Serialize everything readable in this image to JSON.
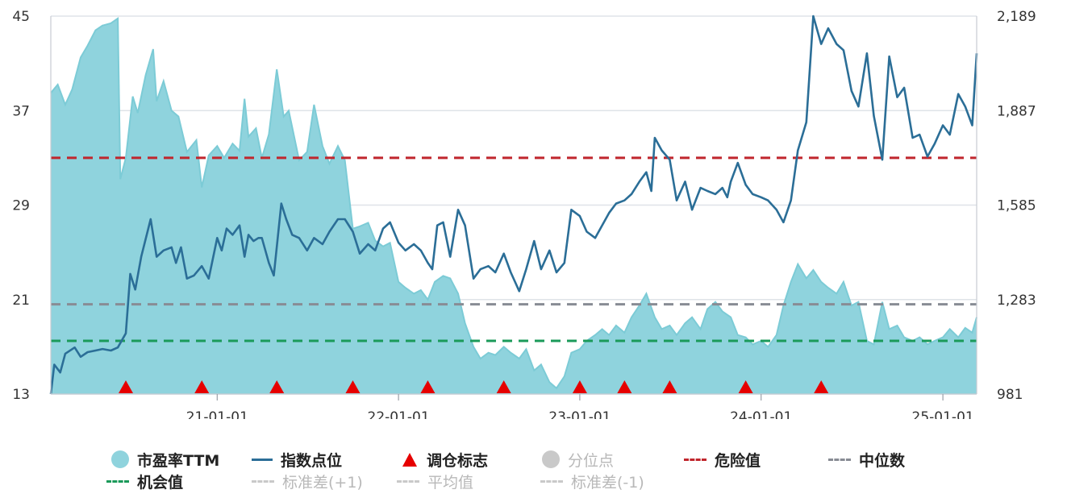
{
  "colors": {
    "pe_fill": "#8fd3dd",
    "pe_line": "#7ccbd6",
    "index_line": "#2b6e97",
    "signal": "#e60000",
    "danger": "#c0262d",
    "median": "#888c94",
    "opportunity": "#1b9a5a",
    "inactive": "#c9c9c9",
    "grid": "#dfe3e8"
  },
  "legend": {
    "pe": "市盈率TTM",
    "index": "指数点位",
    "signal": "调仓标志",
    "quantile": "分位点",
    "danger": "危险值",
    "median": "中位数",
    "opportunity": "机会值",
    "std_plus": "标准差(+1)",
    "mean": "平均值",
    "std_minus": "标准差(-1)"
  },
  "chart_data": {
    "type": "line",
    "x_tick_labels": [
      "21-01-01",
      "22-01-01",
      "23-01-01",
      "24-01-01",
      "25-01-01"
    ],
    "x_range": [
      "2020-02-01",
      "2025-03-10"
    ],
    "y_left_ticks": [
      "13",
      "21",
      "29",
      "37",
      "45"
    ],
    "y_left_range": [
      13,
      45
    ],
    "y_right_ticks": [
      "981",
      "1,283",
      "1,585",
      "1,887",
      "2,189"
    ],
    "y_right_range": [
      981,
      2189
    ],
    "reference_lines": {
      "danger": 33.0,
      "median": 20.6,
      "opportunity": 17.5
    },
    "signal_dates": [
      "2020-07-01",
      "2020-12-01",
      "2021-05-01",
      "2021-10-01",
      "2022-03-01",
      "2022-08-01",
      "2023-01-01",
      "2023-04-01",
      "2023-07-01",
      "2023-12-01",
      "2024-05-01"
    ],
    "series": [
      {
        "name": "市盈率TTM",
        "axis": "left",
        "points": [
          [
            "2020-02-01",
            38.5
          ],
          [
            "2020-02-15",
            39.2
          ],
          [
            "2020-03-01",
            37.5
          ],
          [
            "2020-03-15",
            38.8
          ],
          [
            "2020-04-01",
            41.5
          ],
          [
            "2020-04-15",
            42.5
          ],
          [
            "2020-05-01",
            43.8
          ],
          [
            "2020-05-15",
            44.2
          ],
          [
            "2020-06-01",
            44.4
          ],
          [
            "2020-06-15",
            44.8
          ],
          [
            "2020-06-20",
            31.2
          ],
          [
            "2020-07-01",
            33.0
          ],
          [
            "2020-07-15",
            38.2
          ],
          [
            "2020-07-25",
            36.8
          ],
          [
            "2020-08-10",
            40.0
          ],
          [
            "2020-08-25",
            42.2
          ],
          [
            "2020-09-01",
            37.8
          ],
          [
            "2020-09-15",
            39.5
          ],
          [
            "2020-10-01",
            37.0
          ],
          [
            "2020-10-15",
            36.5
          ],
          [
            "2020-11-01",
            33.5
          ],
          [
            "2020-11-20",
            34.5
          ],
          [
            "2020-12-01",
            30.5
          ],
          [
            "2020-12-15",
            33.2
          ],
          [
            "2021-01-01",
            34.0
          ],
          [
            "2021-01-15",
            33.0
          ],
          [
            "2021-02-01",
            34.2
          ],
          [
            "2021-02-15",
            33.6
          ],
          [
            "2021-02-25",
            38.0
          ],
          [
            "2021-03-05",
            34.8
          ],
          [
            "2021-03-20",
            35.5
          ],
          [
            "2021-04-01",
            33.0
          ],
          [
            "2021-04-15",
            35.0
          ],
          [
            "2021-05-01",
            40.5
          ],
          [
            "2021-05-15",
            36.5
          ],
          [
            "2021-05-25",
            37.0
          ],
          [
            "2021-06-15",
            32.8
          ],
          [
            "2021-07-01",
            33.5
          ],
          [
            "2021-07-15",
            37.5
          ],
          [
            "2021-08-01",
            34.0
          ],
          [
            "2021-08-15",
            32.5
          ],
          [
            "2021-09-01",
            34.0
          ],
          [
            "2021-09-15",
            32.8
          ],
          [
            "2021-10-01",
            27.0
          ],
          [
            "2021-10-15",
            27.2
          ],
          [
            "2021-11-01",
            27.5
          ],
          [
            "2021-11-15",
            26.0
          ],
          [
            "2021-12-01",
            25.5
          ],
          [
            "2021-12-15",
            25.8
          ],
          [
            "2022-01-01",
            22.5
          ],
          [
            "2022-01-15",
            22.0
          ],
          [
            "2022-02-01",
            21.5
          ],
          [
            "2022-02-15",
            21.8
          ],
          [
            "2022-03-01",
            21.0
          ],
          [
            "2022-03-15",
            22.5
          ],
          [
            "2022-04-01",
            23.0
          ],
          [
            "2022-04-15",
            22.8
          ],
          [
            "2022-05-01",
            21.5
          ],
          [
            "2022-05-15",
            19.0
          ],
          [
            "2022-06-01",
            17.0
          ],
          [
            "2022-06-15",
            16.0
          ],
          [
            "2022-07-01",
            16.5
          ],
          [
            "2022-07-15",
            16.3
          ],
          [
            "2022-08-01",
            17.0
          ],
          [
            "2022-08-15",
            16.5
          ],
          [
            "2022-09-01",
            16.0
          ],
          [
            "2022-09-15",
            16.8
          ],
          [
            "2022-10-01",
            15.0
          ],
          [
            "2022-10-15",
            15.5
          ],
          [
            "2022-11-01",
            14.0
          ],
          [
            "2022-11-15",
            13.5
          ],
          [
            "2022-12-01",
            14.5
          ],
          [
            "2022-12-15",
            16.5
          ],
          [
            "2023-01-01",
            16.8
          ],
          [
            "2023-01-15",
            17.5
          ],
          [
            "2023-02-01",
            18.0
          ],
          [
            "2023-02-15",
            18.5
          ],
          [
            "2023-03-01",
            18.0
          ],
          [
            "2023-03-15",
            18.8
          ],
          [
            "2023-04-01",
            18.2
          ],
          [
            "2023-04-15",
            19.5
          ],
          [
            "2023-05-01",
            20.5
          ],
          [
            "2023-05-15",
            21.5
          ],
          [
            "2023-06-01",
            19.5
          ],
          [
            "2023-06-15",
            18.5
          ],
          [
            "2023-07-01",
            18.8
          ],
          [
            "2023-07-15",
            18.0
          ],
          [
            "2023-08-01",
            19.0
          ],
          [
            "2023-08-15",
            19.5
          ],
          [
            "2023-09-01",
            18.5
          ],
          [
            "2023-09-15",
            20.2
          ],
          [
            "2023-10-01",
            20.8
          ],
          [
            "2023-10-15",
            20.0
          ],
          [
            "2023-11-01",
            19.5
          ],
          [
            "2023-11-15",
            18.0
          ],
          [
            "2023-12-01",
            17.8
          ],
          [
            "2023-12-15",
            17.2
          ],
          [
            "2024-01-01",
            17.5
          ],
          [
            "2024-01-15",
            17.0
          ],
          [
            "2024-02-01",
            18.0
          ],
          [
            "2024-02-15",
            20.5
          ],
          [
            "2024-03-01",
            22.5
          ],
          [
            "2024-03-15",
            24.0
          ],
          [
            "2024-04-01",
            22.8
          ],
          [
            "2024-04-15",
            23.5
          ],
          [
            "2024-05-01",
            22.5
          ],
          [
            "2024-05-15",
            22.0
          ],
          [
            "2024-06-01",
            21.5
          ],
          [
            "2024-06-15",
            22.5
          ],
          [
            "2024-07-01",
            20.5
          ],
          [
            "2024-07-15",
            20.8
          ],
          [
            "2024-08-01",
            17.5
          ],
          [
            "2024-08-15",
            17.2
          ],
          [
            "2024-09-01",
            20.8
          ],
          [
            "2024-09-15",
            18.5
          ],
          [
            "2024-10-01",
            18.8
          ],
          [
            "2024-10-15",
            17.8
          ],
          [
            "2024-11-01",
            17.5
          ],
          [
            "2024-11-15",
            17.8
          ],
          [
            "2024-12-01",
            17.2
          ],
          [
            "2024-12-15",
            17.5
          ],
          [
            "2025-01-01",
            17.8
          ],
          [
            "2025-01-15",
            18.5
          ],
          [
            "2025-02-01",
            17.8
          ],
          [
            "2025-02-15",
            18.6
          ],
          [
            "2025-03-01",
            18.2
          ],
          [
            "2025-03-10",
            19.5
          ]
        ]
      },
      {
        "name": "指数点位",
        "axis": "right",
        "points": [
          [
            "2020-02-01",
            981
          ],
          [
            "2020-02-08",
            1075
          ],
          [
            "2020-02-20",
            1050
          ],
          [
            "2020-03-01",
            1110
          ],
          [
            "2020-03-20",
            1130
          ],
          [
            "2020-04-01",
            1100
          ],
          [
            "2020-04-15",
            1115
          ],
          [
            "2020-05-01",
            1120
          ],
          [
            "2020-05-15",
            1125
          ],
          [
            "2020-06-01",
            1120
          ],
          [
            "2020-06-15",
            1130
          ],
          [
            "2020-07-01",
            1175
          ],
          [
            "2020-07-10",
            1365
          ],
          [
            "2020-07-20",
            1315
          ],
          [
            "2020-08-01",
            1420
          ],
          [
            "2020-08-20",
            1540
          ],
          [
            "2020-09-01",
            1420
          ],
          [
            "2020-09-15",
            1440
          ],
          [
            "2020-10-01",
            1450
          ],
          [
            "2020-10-10",
            1400
          ],
          [
            "2020-10-20",
            1450
          ],
          [
            "2020-11-01",
            1350
          ],
          [
            "2020-11-15",
            1360
          ],
          [
            "2020-12-01",
            1390
          ],
          [
            "2020-12-15",
            1350
          ],
          [
            "2021-01-01",
            1480
          ],
          [
            "2021-01-10",
            1440
          ],
          [
            "2021-01-20",
            1510
          ],
          [
            "2021-02-01",
            1490
          ],
          [
            "2021-02-15",
            1520
          ],
          [
            "2021-02-25",
            1420
          ],
          [
            "2021-03-05",
            1490
          ],
          [
            "2021-03-15",
            1470
          ],
          [
            "2021-03-25",
            1480
          ],
          [
            "2021-04-01",
            1480
          ],
          [
            "2021-04-15",
            1400
          ],
          [
            "2021-04-25",
            1360
          ],
          [
            "2021-05-10",
            1590
          ],
          [
            "2021-05-20",
            1540
          ],
          [
            "2021-06-01",
            1490
          ],
          [
            "2021-06-15",
            1480
          ],
          [
            "2021-07-01",
            1440
          ],
          [
            "2021-07-15",
            1480
          ],
          [
            "2021-08-01",
            1460
          ],
          [
            "2021-08-15",
            1500
          ],
          [
            "2021-09-01",
            1540
          ],
          [
            "2021-09-15",
            1540
          ],
          [
            "2021-10-01",
            1500
          ],
          [
            "2021-10-15",
            1430
          ],
          [
            "2021-11-01",
            1460
          ],
          [
            "2021-11-15",
            1440
          ],
          [
            "2021-12-01",
            1510
          ],
          [
            "2021-12-15",
            1530
          ],
          [
            "2022-01-01",
            1465
          ],
          [
            "2022-01-15",
            1440
          ],
          [
            "2022-02-01",
            1460
          ],
          [
            "2022-02-15",
            1440
          ],
          [
            "2022-03-01",
            1400
          ],
          [
            "2022-03-10",
            1380
          ],
          [
            "2022-03-20",
            1520
          ],
          [
            "2022-04-01",
            1530
          ],
          [
            "2022-04-15",
            1420
          ],
          [
            "2022-05-01",
            1570
          ],
          [
            "2022-05-15",
            1520
          ],
          [
            "2022-06-01",
            1350
          ],
          [
            "2022-06-15",
            1380
          ],
          [
            "2022-07-01",
            1390
          ],
          [
            "2022-07-15",
            1370
          ],
          [
            "2022-08-01",
            1430
          ],
          [
            "2022-08-15",
            1370
          ],
          [
            "2022-09-01",
            1310
          ],
          [
            "2022-09-15",
            1380
          ],
          [
            "2022-10-01",
            1470
          ],
          [
            "2022-10-15",
            1380
          ],
          [
            "2022-11-01",
            1440
          ],
          [
            "2022-11-15",
            1370
          ],
          [
            "2022-12-01",
            1400
          ],
          [
            "2022-12-15",
            1570
          ],
          [
            "2023-01-01",
            1550
          ],
          [
            "2023-01-15",
            1500
          ],
          [
            "2023-02-01",
            1480
          ],
          [
            "2023-02-15",
            1520
          ],
          [
            "2023-03-01",
            1560
          ],
          [
            "2023-03-15",
            1590
          ],
          [
            "2023-04-01",
            1600
          ],
          [
            "2023-04-15",
            1620
          ],
          [
            "2023-05-01",
            1660
          ],
          [
            "2023-05-15",
            1690
          ],
          [
            "2023-05-25",
            1630
          ],
          [
            "2023-06-01",
            1800
          ],
          [
            "2023-06-15",
            1760
          ],
          [
            "2023-07-01",
            1730
          ],
          [
            "2023-07-15",
            1600
          ],
          [
            "2023-08-01",
            1660
          ],
          [
            "2023-08-15",
            1570
          ],
          [
            "2023-09-01",
            1640
          ],
          [
            "2023-09-15",
            1630
          ],
          [
            "2023-10-01",
            1620
          ],
          [
            "2023-10-15",
            1640
          ],
          [
            "2023-10-25",
            1610
          ],
          [
            "2023-11-01",
            1660
          ],
          [
            "2023-11-15",
            1720
          ],
          [
            "2023-12-01",
            1650
          ],
          [
            "2023-12-15",
            1620
          ],
          [
            "2024-01-01",
            1610
          ],
          [
            "2024-01-15",
            1600
          ],
          [
            "2024-02-01",
            1570
          ],
          [
            "2024-02-15",
            1530
          ],
          [
            "2024-03-01",
            1600
          ],
          [
            "2024-03-15",
            1760
          ],
          [
            "2024-04-01",
            1850
          ],
          [
            "2024-04-15",
            2189
          ],
          [
            "2024-05-01",
            2100
          ],
          [
            "2024-05-15",
            2150
          ],
          [
            "2024-06-01",
            2100
          ],
          [
            "2024-06-15",
            2080
          ],
          [
            "2024-07-01",
            1950
          ],
          [
            "2024-07-15",
            1900
          ],
          [
            "2024-08-01",
            2070
          ],
          [
            "2024-08-15",
            1870
          ],
          [
            "2024-09-01",
            1730
          ],
          [
            "2024-09-15",
            2060
          ],
          [
            "2024-10-01",
            1930
          ],
          [
            "2024-10-15",
            1960
          ],
          [
            "2024-11-01",
            1800
          ],
          [
            "2024-11-15",
            1810
          ],
          [
            "2024-12-01",
            1740
          ],
          [
            "2024-12-15",
            1780
          ],
          [
            "2025-01-01",
            1840
          ],
          [
            "2025-01-15",
            1810
          ],
          [
            "2025-02-01",
            1940
          ],
          [
            "2025-02-15",
            1900
          ],
          [
            "2025-03-01",
            1840
          ],
          [
            "2025-03-10",
            2070
          ]
        ]
      }
    ]
  }
}
